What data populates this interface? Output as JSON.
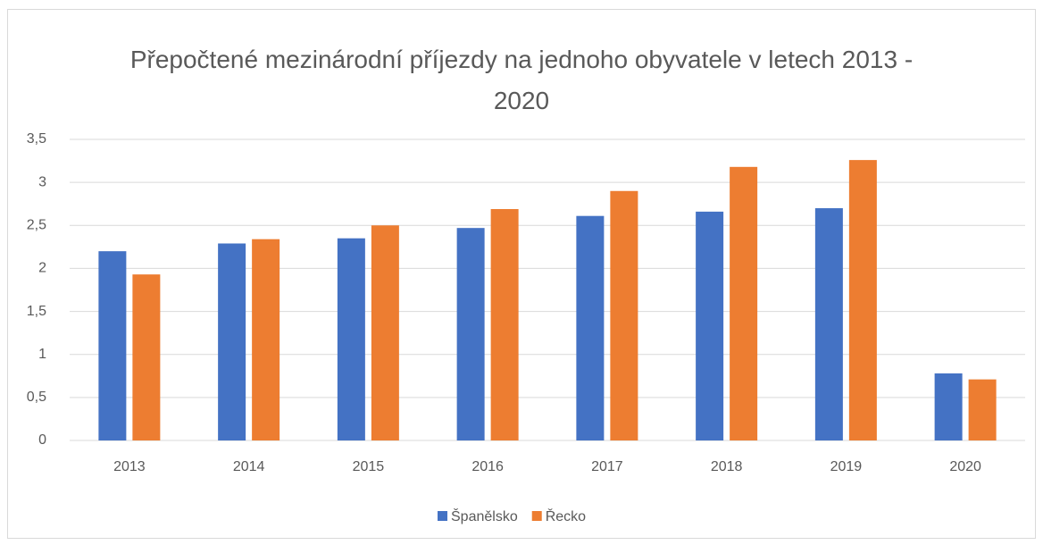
{
  "chart_data": {
    "type": "bar",
    "title": "Přepočtené mezinárodní příjezdy na jednoho obyvatele v letech 2013 - 2020",
    "categories": [
      "2013",
      "2014",
      "2015",
      "2016",
      "2017",
      "2018",
      "2019",
      "2020"
    ],
    "series": [
      {
        "name": "Španělsko",
        "color": "#4472c4",
        "values": [
          2.2,
          2.29,
          2.35,
          2.47,
          2.61,
          2.66,
          2.7,
          0.78
        ]
      },
      {
        "name": "Řecko",
        "color": "#ed7d31",
        "values": [
          1.93,
          2.34,
          2.5,
          2.69,
          2.9,
          3.18,
          3.26,
          0.71
        ]
      }
    ],
    "ylim": [
      0,
      3.5
    ],
    "yticks": [
      0,
      {
        "value": 0.5,
        "label": "0,5"
      },
      1,
      {
        "value": 1.5,
        "label": "1,5"
      },
      2,
      {
        "value": 2.5,
        "label": "2,5"
      },
      3,
      {
        "value": 3.5,
        "label": "3,5"
      }
    ],
    "grid": true,
    "legend": "bottom"
  }
}
